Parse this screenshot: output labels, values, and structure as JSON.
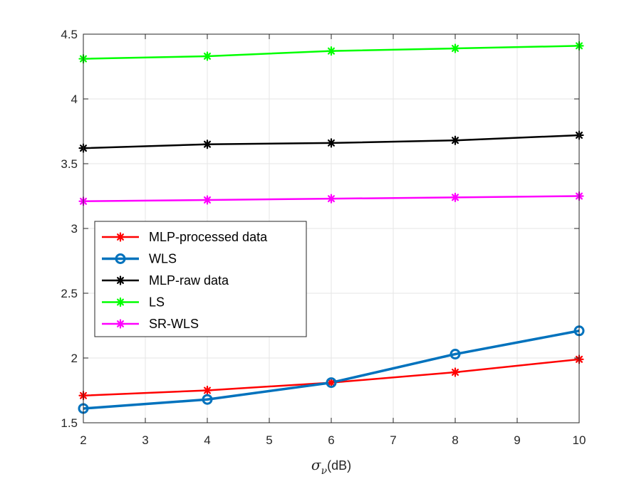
{
  "chart_data": {
    "type": "line",
    "title": "",
    "xlabel": "σ_ν(dB)",
    "xlabel_parts": {
      "symbol": "σ",
      "subscript": "ν",
      "suffix": "(dB)"
    },
    "ylabel": "",
    "xlim": [
      2,
      10
    ],
    "ylim": [
      1.5,
      4.5
    ],
    "xticks": [
      2,
      3,
      4,
      5,
      6,
      7,
      8,
      9,
      10
    ],
    "yticks": [
      1.5,
      2,
      2.5,
      3,
      3.5,
      4,
      4.5
    ],
    "xtick_labels": [
      "2",
      "3",
      "4",
      "5",
      "6",
      "7",
      "8",
      "9",
      "10"
    ],
    "ytick_labels": [
      "1.5",
      "2",
      "2.5",
      "3",
      "3.5",
      "4",
      "4.5"
    ],
    "grid": true,
    "legend_position": "center-left",
    "x": [
      2,
      4,
      6,
      8,
      10
    ],
    "series": [
      {
        "name": "MLP-processed data",
        "color": "#ff0000",
        "marker": "asterisk",
        "values": [
          1.71,
          1.75,
          1.81,
          1.89,
          1.99
        ]
      },
      {
        "name": "WLS",
        "color": "#0072bd",
        "marker": "circle",
        "values": [
          1.61,
          1.68,
          1.81,
          2.03,
          2.21
        ]
      },
      {
        "name": "MLP-raw data",
        "color": "#000000",
        "marker": "asterisk",
        "values": [
          3.62,
          3.65,
          3.66,
          3.68,
          3.72
        ]
      },
      {
        "name": "LS",
        "color": "#00ff00",
        "marker": "asterisk",
        "values": [
          4.31,
          4.33,
          4.37,
          4.39,
          4.41
        ]
      },
      {
        "name": "SR-WLS",
        "color": "#ff00ff",
        "marker": "asterisk",
        "values": [
          3.21,
          3.22,
          3.23,
          3.24,
          3.25
        ]
      }
    ]
  }
}
